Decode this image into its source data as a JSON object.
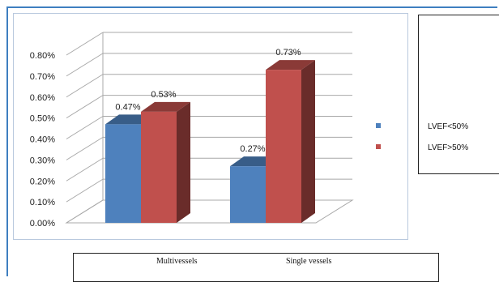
{
  "chart_data": {
    "type": "bar",
    "style": "3d-clustered-column",
    "categories": [
      "Multivessels",
      "Single vessels"
    ],
    "series": [
      {
        "name": "LVEF<50%",
        "color": "#4e81bd",
        "values": [
          0.47,
          0.27
        ],
        "labels": [
          "0.47%",
          "0.27%"
        ]
      },
      {
        "name": "LVEF>50%",
        "color": "#c0504d",
        "values": [
          0.53,
          0.73
        ],
        "labels": [
          "0.53%",
          "0.73%"
        ]
      }
    ],
    "yticks": [
      "0.00%",
      "0.10%",
      "0.20%",
      "0.30%",
      "0.40%",
      "0.50%",
      "0.60%",
      "0.70%",
      "0.80%"
    ],
    "ylim": [
      0,
      0.8
    ],
    "grid": true,
    "legend": "right"
  }
}
